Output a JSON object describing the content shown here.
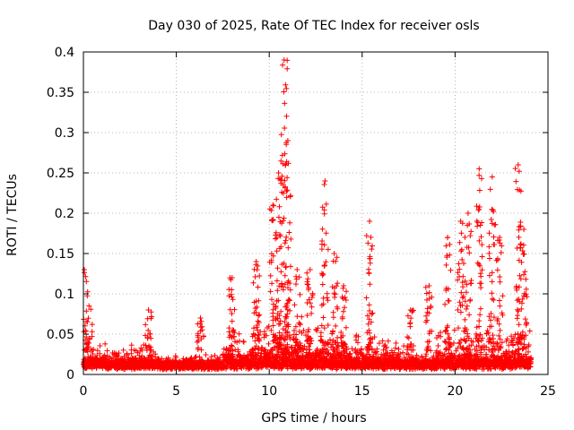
{
  "chart_data": {
    "type": "scatter",
    "title": "Day 030 of 2025, Rate Of TEC Index for receiver osls",
    "xlabel": "GPS time / hours",
    "ylabel": "ROTI / TECUs",
    "xlim": [
      0,
      25
    ],
    "ylim": [
      0,
      0.4
    ],
    "x_ticks": [
      "0",
      "5",
      "10",
      "15",
      "20",
      "25"
    ],
    "y_ticks": [
      "0",
      "0.05",
      "0.1",
      "0.15",
      "0.2",
      "0.25",
      "0.3",
      "0.35",
      "0.4"
    ],
    "grid": true,
    "marker": "+",
    "series_color": "#ff0000",
    "peaks": [
      {
        "x": 0.05,
        "y": 0.13
      },
      {
        "x": 0.3,
        "y": 0.085
      },
      {
        "x": 3.5,
        "y": 0.08
      },
      {
        "x": 6.3,
        "y": 0.07
      },
      {
        "x": 8.0,
        "y": 0.12
      },
      {
        "x": 9.3,
        "y": 0.14
      },
      {
        "x": 10.2,
        "y": 0.21
      },
      {
        "x": 10.5,
        "y": 0.25
      },
      {
        "x": 10.8,
        "y": 0.39
      },
      {
        "x": 11.0,
        "y": 0.29
      },
      {
        "x": 11.5,
        "y": 0.13
      },
      {
        "x": 12.2,
        "y": 0.13
      },
      {
        "x": 13.0,
        "y": 0.24
      },
      {
        "x": 13.5,
        "y": 0.15
      },
      {
        "x": 14.0,
        "y": 0.11
      },
      {
        "x": 15.4,
        "y": 0.19
      },
      {
        "x": 17.6,
        "y": 0.08
      },
      {
        "x": 18.6,
        "y": 0.11
      },
      {
        "x": 19.6,
        "y": 0.17
      },
      {
        "x": 20.3,
        "y": 0.19
      },
      {
        "x": 20.7,
        "y": 0.2
      },
      {
        "x": 21.3,
        "y": 0.255
      },
      {
        "x": 22.0,
        "y": 0.245
      },
      {
        "x": 22.4,
        "y": 0.17
      },
      {
        "x": 23.4,
        "y": 0.26
      },
      {
        "x": 23.7,
        "y": 0.18
      }
    ]
  }
}
